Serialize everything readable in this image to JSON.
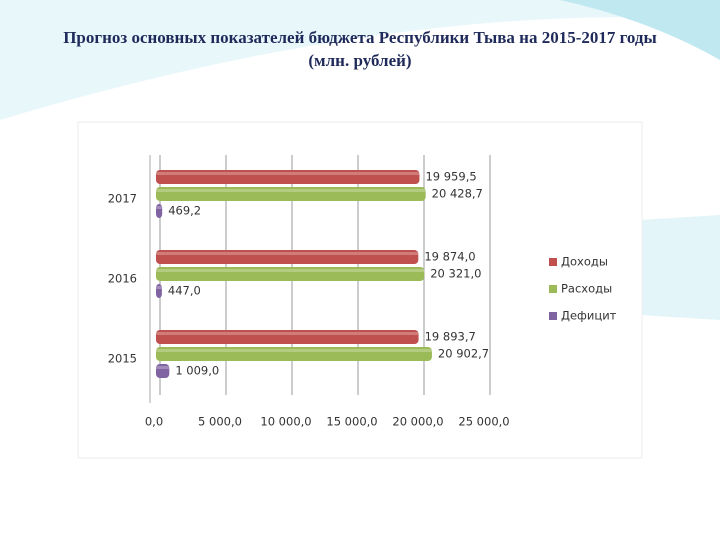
{
  "chart_data": {
    "type": "bar",
    "orientation": "horizontal",
    "title": "Прогноз основных показателей бюджета Республики Тыва на 2015-2017 годы (млн. рублей)",
    "categories": [
      "2015",
      "2016",
      "2017"
    ],
    "series": [
      {
        "name": "Доходы",
        "color": "#c0504d",
        "values": [
          19893.7,
          19874.0,
          19959.5
        ],
        "value_labels": [
          "19 893,7",
          "19 874,0",
          "19 959,5"
        ]
      },
      {
        "name": "Расходы",
        "color": "#9bbb59",
        "values": [
          20902.7,
          20321.0,
          20428.7
        ],
        "value_labels": [
          "20 902,7",
          "20 321,0",
          "20 428,7"
        ]
      },
      {
        "name": "Дефицит",
        "color": "#8064a2",
        "values": [
          1009.0,
          447.0,
          469.2
        ],
        "value_labels": [
          "1 009,0",
          "447,0",
          "469,2"
        ]
      }
    ],
    "xlim": [
      0,
      25000
    ],
    "xticks": [
      {
        "value": 0,
        "label": "0,0"
      },
      {
        "value": 5000,
        "label": "5 000,0"
      },
      {
        "value": 10000,
        "label": "10 000,0"
      },
      {
        "value": 15000,
        "label": "15 000,0"
      },
      {
        "value": 20000,
        "label": "20 000,0"
      },
      {
        "value": 25000,
        "label": "25 000,0"
      }
    ],
    "grid": true,
    "legend": "right"
  }
}
